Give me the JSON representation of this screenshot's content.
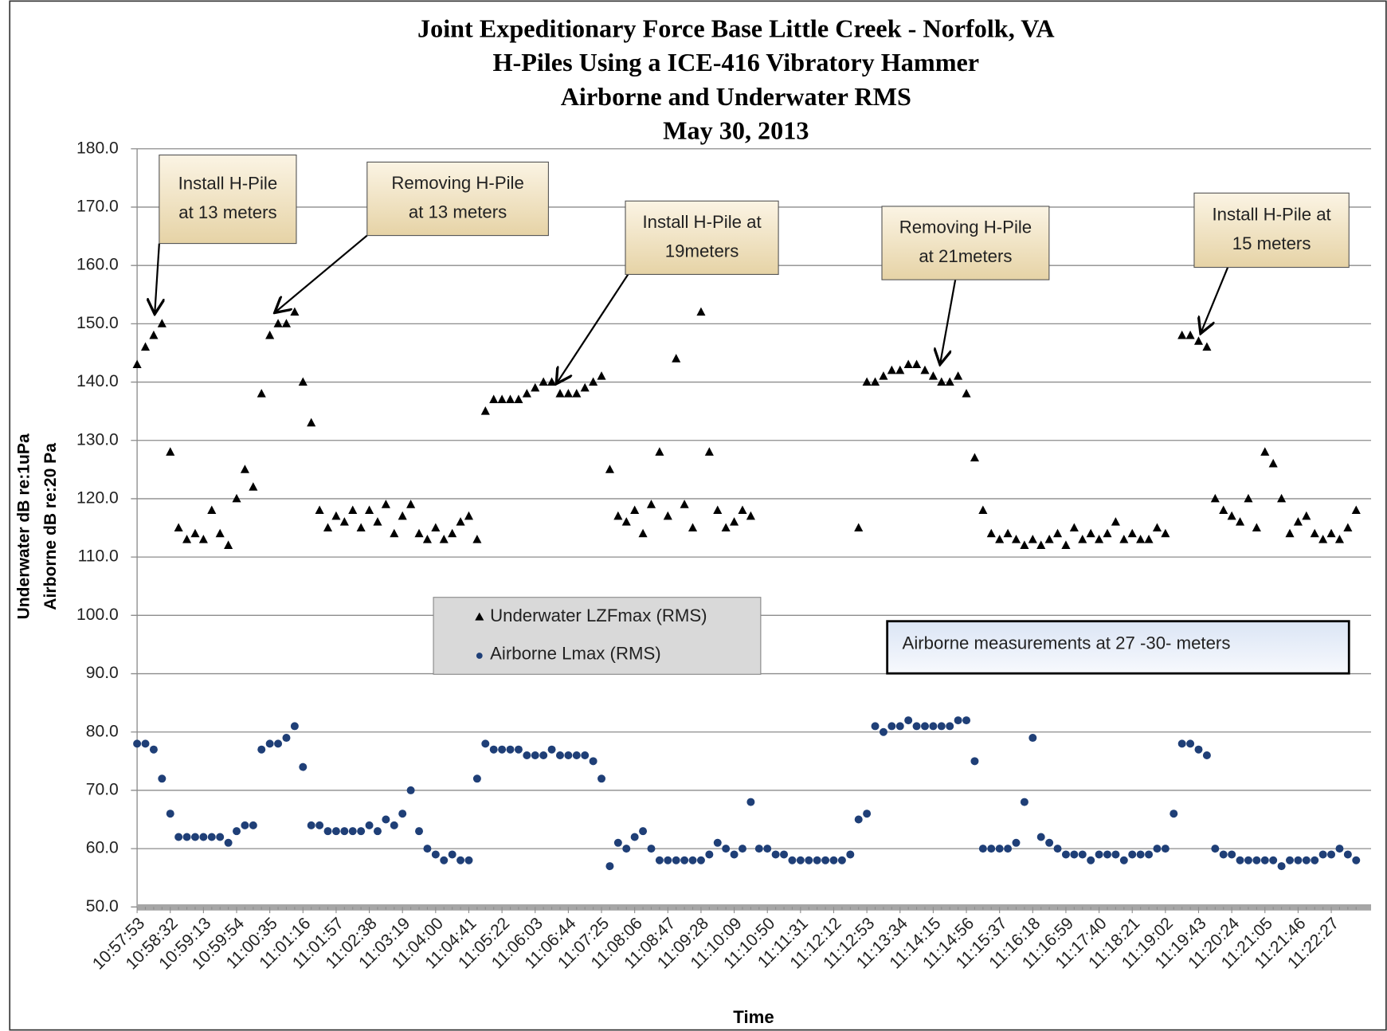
{
  "chart_data": {
    "type": "scatter",
    "title": [
      "Joint Expeditionary  Force Base  Little Creek  - Norfolk, VA",
      "H-Piles Using a ICE-416 Vibratory  Hammer",
      "Airborne and Underwater RMS",
      "May 30, 2013"
    ],
    "y_label": [
      "Underwater dB re:1uPa",
      "Airborne dB re:20 Pa"
    ],
    "x_label": "Time",
    "ylim": [
      50,
      180
    ],
    "yticks": [
      {
        "value": 50,
        "label": "50.0"
      },
      {
        "value": 60,
        "label": "60.0"
      },
      {
        "value": 70,
        "label": "70.0"
      },
      {
        "value": 80,
        "label": "80.0"
      },
      {
        "value": 90,
        "label": "90.0"
      },
      {
        "value": 100,
        "label": "100.0"
      },
      {
        "value": 110,
        "label": "110.0"
      },
      {
        "value": 120,
        "label": "120.0"
      },
      {
        "value": 130,
        "label": "130.0"
      },
      {
        "value": 140,
        "label": "140.0"
      },
      {
        "value": 150,
        "label": "150.0"
      },
      {
        "value": 160,
        "label": "160.0"
      },
      {
        "value": 170,
        "label": "170.0"
      },
      {
        "value": 180,
        "label": "180.0"
      }
    ],
    "grid": true,
    "categories": [
      "10:57:53",
      null,
      null,
      null,
      "10:58:32",
      null,
      null,
      null,
      "10:59:13",
      null,
      null,
      null,
      "10:59:54",
      null,
      null,
      null,
      "11:00:35",
      null,
      null,
      null,
      "11:01:16",
      null,
      null,
      null,
      "11:01:57",
      null,
      null,
      null,
      "11:02:38",
      null,
      null,
      null,
      "11:03:19",
      null,
      null,
      null,
      "11:04:00",
      null,
      null,
      null,
      "11:04:41",
      null,
      null,
      null,
      "11:05:22",
      null,
      null,
      null,
      "11:06:03",
      null,
      null,
      null,
      "11:06:44",
      null,
      null,
      null,
      "11:07:25",
      null,
      null,
      null,
      "11:08:06",
      null,
      null,
      null,
      "11:08:47",
      null,
      null,
      null,
      "11:09:28",
      null,
      null,
      null,
      "11:10:09",
      null,
      null,
      null,
      "11:10:50",
      null,
      null,
      null,
      "11:11:31",
      null,
      null,
      null,
      "11:12:12",
      null,
      null,
      null,
      "11:12:53",
      null,
      null,
      null,
      "11:13:34",
      null,
      null,
      null,
      "11:14:15",
      null,
      null,
      null,
      "11:14:56",
      null,
      null,
      null,
      "11:15:37",
      null,
      null,
      null,
      "11:16:18",
      null,
      null,
      null,
      "11:16:59",
      null,
      null,
      null,
      "11:17:40",
      null,
      null,
      null,
      "11:18:21",
      null,
      null,
      null,
      "11:19:02",
      null,
      null,
      null,
      "11:19:43",
      null,
      null,
      null,
      "11:20:24",
      null,
      null,
      null,
      "11:21:05",
      null,
      null,
      null,
      "11:21:46",
      null,
      null,
      null,
      "11:22:27",
      null,
      null,
      null
    ],
    "series": [
      {
        "name": "Underwater LZFmax (RMS)",
        "marker": "triangle",
        "color": "#000000",
        "values": [
          143,
          146,
          148,
          150,
          128,
          115,
          113,
          114,
          113,
          118,
          114,
          112,
          120,
          125,
          122,
          138,
          148,
          150,
          150,
          152,
          140,
          133,
          118,
          115,
          117,
          116,
          118,
          115,
          118,
          116,
          119,
          114,
          117,
          119,
          114,
          113,
          115,
          113,
          114,
          116,
          117,
          113,
          135,
          137,
          137,
          137,
          137,
          138,
          139,
          140,
          140,
          138,
          138,
          138,
          139,
          140,
          141,
          125,
          117,
          116,
          118,
          114,
          119,
          128,
          117,
          144,
          119,
          115,
          152,
          128,
          118,
          115,
          116,
          118,
          117,
          null,
          null,
          null,
          null,
          null,
          null,
          null,
          null,
          null,
          null,
          null,
          null,
          115,
          140,
          140,
          141,
          142,
          142,
          143,
          143,
          142,
          141,
          140,
          140,
          141,
          138,
          127,
          118,
          114,
          113,
          114,
          113,
          112,
          113,
          112,
          113,
          114,
          112,
          115,
          113,
          114,
          113,
          114,
          116,
          113,
          114,
          113,
          113,
          115,
          114,
          null,
          148,
          148,
          147,
          146,
          120,
          118,
          117,
          116,
          120,
          115,
          128,
          126,
          120,
          114,
          116,
          117,
          114,
          113,
          114,
          113,
          115,
          118
        ]
      },
      {
        "name": "Airborne Lmax (RMS)",
        "marker": "circle",
        "color": "#1f3f77",
        "values": [
          78,
          78,
          77,
          72,
          66,
          62,
          62,
          62,
          62,
          62,
          62,
          61,
          63,
          64,
          64,
          77,
          78,
          78,
          79,
          81,
          74,
          64,
          64,
          63,
          63,
          63,
          63,
          63,
          64,
          63,
          65,
          64,
          66,
          70,
          63,
          60,
          59,
          58,
          59,
          58,
          58,
          72,
          78,
          77,
          77,
          77,
          77,
          76,
          76,
          76,
          77,
          76,
          76,
          76,
          76,
          75,
          72,
          57,
          61,
          60,
          62,
          63,
          60,
          58,
          58,
          58,
          58,
          58,
          58,
          59,
          61,
          60,
          59,
          60,
          68,
          60,
          60,
          59,
          59,
          58,
          58,
          58,
          58,
          58,
          58,
          58,
          59,
          65,
          66,
          81,
          80,
          81,
          81,
          82,
          81,
          81,
          81,
          81,
          81,
          82,
          82,
          75,
          60,
          60,
          60,
          60,
          61,
          68,
          79,
          62,
          61,
          60,
          59,
          59,
          59,
          58,
          59,
          59,
          59,
          58,
          59,
          59,
          59,
          60,
          60,
          66,
          78,
          78,
          77,
          76,
          60,
          59,
          59,
          58,
          58,
          58,
          58,
          58,
          57,
          58,
          58,
          58,
          58,
          59,
          59,
          60,
          59,
          58
        ]
      }
    ],
    "annotations": [
      [
        "Install H-Pile",
        "at 13 meters"
      ],
      [
        "Removing  H-Pile",
        "at 13 meters"
      ],
      [
        "Install H-Pile at",
        "19meters"
      ],
      [
        "Removing H-Pile",
        "at 21meters"
      ],
      [
        "Install H-Pile at",
        "15 meters"
      ]
    ],
    "note": "Airborne  measurements  at 27 -30- meters"
  }
}
